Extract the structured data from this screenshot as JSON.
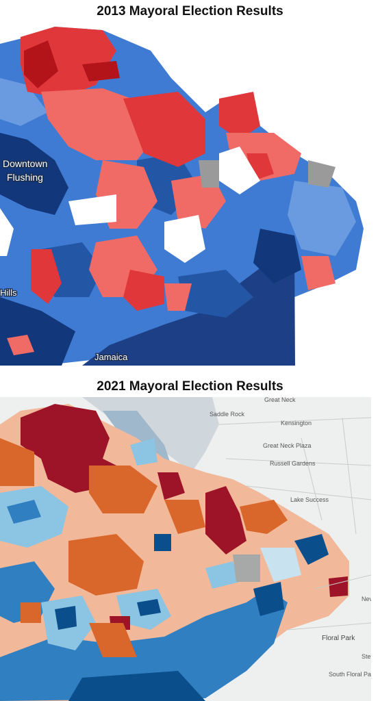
{
  "panels": [
    {
      "title": "2013 Mayoral Election Results",
      "place_labels": [
        "Downtown",
        "Flushing",
        "Hills",
        "Jamaica"
      ],
      "colors": {
        "strong_dem": "#12377a",
        "dem": "#2456a6",
        "lean_dem": "#3f7bd2",
        "light_dem": "#6a9be0",
        "strong_rep": "#b3141a",
        "rep": "#e0373b",
        "lean_rep": "#f06a66",
        "tied": "#9a9a9a",
        "water": "#1d3f86",
        "land": "#ffffff"
      }
    },
    {
      "title": "2021 Mayoral Election Results",
      "place_labels": [
        "Great Neck",
        "Saddle Rock",
        "Kensington",
        "Great Neck Plaza",
        "Russell Gardens",
        "Lake Success",
        "Floral Park",
        "South Floral Park",
        "Nev",
        "Ste"
      ],
      "colors": {
        "strong_dem": "#0b4e8c",
        "dem": "#2f7fc1",
        "lean_dem": "#8cc4e3",
        "light_dem": "#c9e2f0",
        "strong_rep": "#9d1428",
        "rep": "#d9662a",
        "lean_rep": "#f1b89a",
        "light_rep": "#f7d3bf",
        "tied": "#a7a9a8",
        "water": "#cfd6dc",
        "land": "#eef0ef"
      }
    }
  ]
}
